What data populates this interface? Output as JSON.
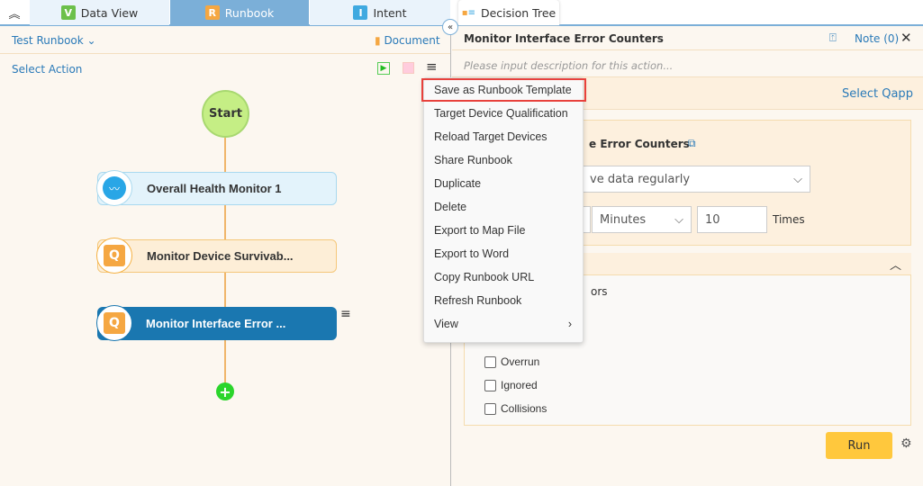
{
  "tabs": [
    {
      "label": "Data View",
      "icon": "V",
      "color": "#6cc04a"
    },
    {
      "label": "Runbook",
      "icon": "R",
      "color": "#f5a742",
      "active": true
    },
    {
      "label": "Intent",
      "icon": "I",
      "color": "#3fa9e0"
    },
    {
      "label": "Decision Tree"
    }
  ],
  "left": {
    "runbook_name": "Test Runbook",
    "document": "Document",
    "select_action": "Select Action",
    "start": "Start",
    "nodes": [
      {
        "label": "Overall Health Monitor 1",
        "type": "health"
      },
      {
        "label": "Monitor Device Survivab...",
        "type": "qapp"
      },
      {
        "label": "Monitor Interface Error ...",
        "type": "qapp",
        "selected": true
      }
    ]
  },
  "menu": {
    "items": [
      "Save as Runbook Template",
      "Target Device Qualification",
      "Reload Target Devices",
      "Share Runbook",
      "Duplicate",
      "Delete",
      "Export to Map File",
      "Export to Word",
      "Copy Runbook URL",
      "Refresh Runbook",
      "View"
    ],
    "highlighted": "Save as Runbook Template"
  },
  "right": {
    "title": "Monitor Interface Error Counters",
    "note": "Note (0)",
    "description_placeholder": "Please input description for this action...",
    "select_qapp": "Select Qapp",
    "qapp_title_partial": "e Error Counters",
    "mode_partial": "ve data regularly",
    "unit": "Minutes",
    "times_value": "10",
    "times_label": "Times",
    "errors_partial": "ors",
    "checkboxes": [
      {
        "label": "Overrun",
        "checked": false
      },
      {
        "label": "Ignored",
        "checked": false
      },
      {
        "label": "Collisions",
        "checked": false
      }
    ],
    "run": "Run"
  },
  "colors": {
    "accent": "#2a7ab8",
    "run": "#ffc83d",
    "selected_node": "#1a77b0",
    "highlight": "#e8413c"
  }
}
